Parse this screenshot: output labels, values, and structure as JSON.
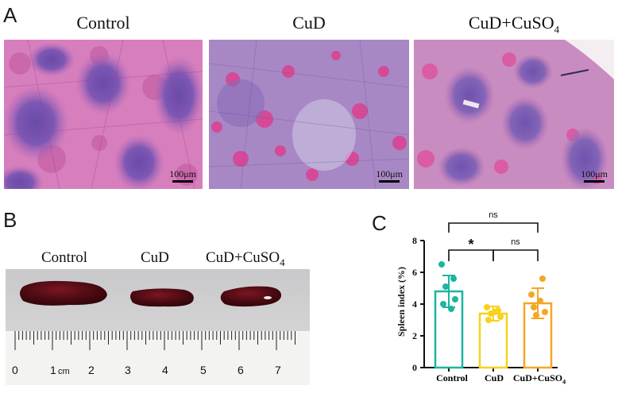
{
  "panel_a": {
    "letter": "A",
    "titles": [
      {
        "main": "Control",
        "sub": ""
      },
      {
        "main": "CuD",
        "sub": ""
      },
      {
        "main": "CuD+CuSO",
        "sub": "4"
      }
    ],
    "scale_label": "100μm"
  },
  "panel_b": {
    "letter": "B",
    "labels": [
      {
        "main": "Control",
        "sub": ""
      },
      {
        "main": "CuD",
        "sub": ""
      },
      {
        "main": "CuD+CuSO",
        "sub": "4"
      }
    ],
    "ruler_numbers": [
      "0",
      "1",
      "cm",
      "2",
      "3",
      "4",
      "5",
      "6",
      "7"
    ]
  },
  "panel_c": {
    "letter": "C"
  },
  "chart_data": {
    "type": "bar",
    "categories": [
      "Control",
      "CuD",
      "CuD+CuSO4"
    ],
    "category_labels": [
      {
        "main": "Control",
        "sub": ""
      },
      {
        "main": "CuD",
        "sub": ""
      },
      {
        "main": "CuD+CuSO",
        "sub": "4"
      }
    ],
    "values": [
      4.8,
      3.4,
      4.05
    ],
    "errors": [
      1.0,
      0.45,
      0.95
    ],
    "points": [
      [
        6.5,
        5.6,
        5.1,
        4.3,
        4.0,
        3.7
      ],
      [
        3.8,
        3.6,
        3.4,
        3.2,
        3.0,
        3.5
      ],
      [
        5.6,
        4.6,
        4.2,
        3.8,
        3.5,
        3.3
      ]
    ],
    "colors": [
      "#1bb5a1",
      "#f7d21c",
      "#f5a623"
    ],
    "ylabel": "Spleen index (%)",
    "yticks": [
      "0",
      "2",
      "4",
      "6",
      "8"
    ],
    "ylim": [
      0,
      8
    ],
    "significance": [
      {
        "from": 0,
        "to": 1,
        "text": "*",
        "level": "low"
      },
      {
        "from": 1,
        "to": 2,
        "text": "ns",
        "level": "low"
      },
      {
        "from": 0,
        "to": 2,
        "text": "ns",
        "level": "high"
      }
    ],
    "grid": false
  }
}
